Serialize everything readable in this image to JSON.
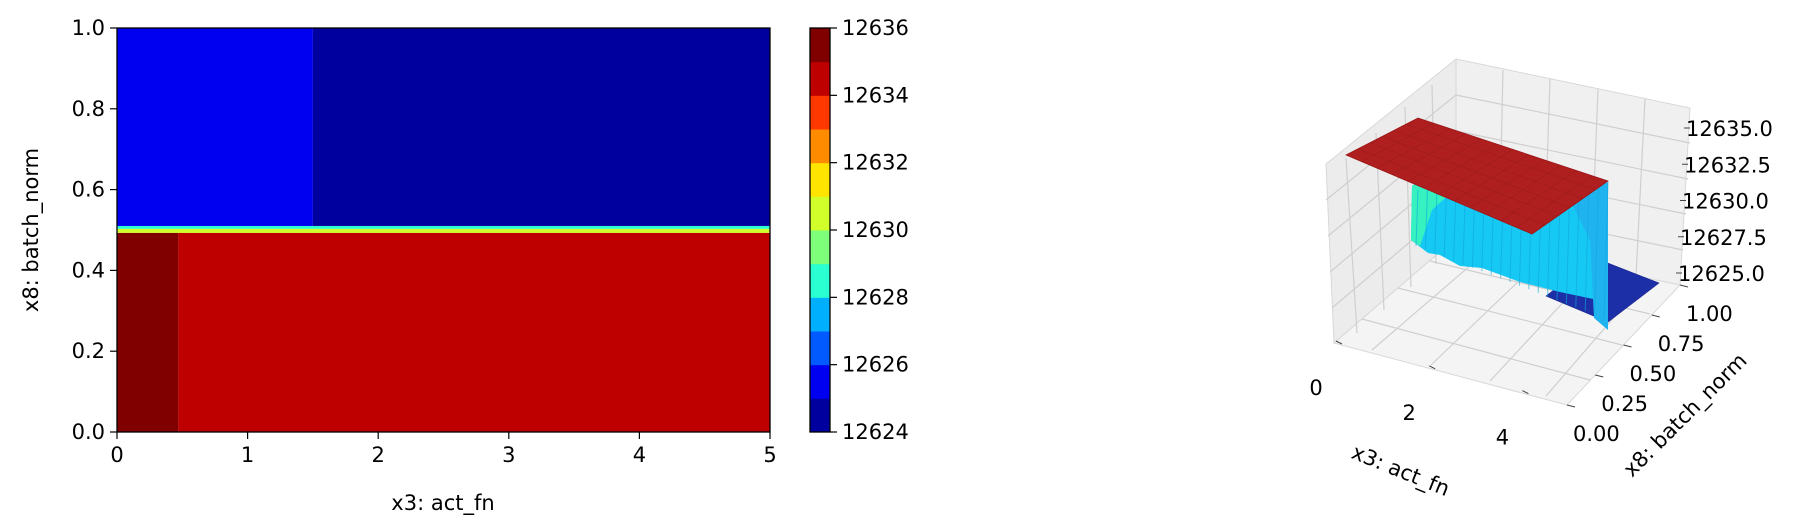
{
  "chart_data": [
    {
      "type": "contourf",
      "xlabel": "x3: act_fn",
      "ylabel": "x8: batch_norm",
      "xlim": [
        0,
        5
      ],
      "ylim": [
        0,
        1
      ],
      "xticks": [
        "0",
        "1",
        "2",
        "3",
        "4",
        "5"
      ],
      "yticks": [
        "0.0",
        "0.2",
        "0.4",
        "0.6",
        "0.8",
        "1.0"
      ],
      "regions": [
        {
          "x": [
            0,
            0.47
          ],
          "y": [
            0,
            0.493
          ],
          "value": 12635.7
        },
        {
          "x": [
            0.47,
            5
          ],
          "y": [
            0,
            0.493
          ],
          "value": 12634.5
        },
        {
          "x": [
            0,
            5
          ],
          "y": [
            0.493,
            0.503
          ],
          "value": 12630.5
        },
        {
          "x": [
            0,
            5
          ],
          "y": [
            0.503,
            0.51
          ],
          "value": 12628.8
        },
        {
          "x": [
            0,
            1.5
          ],
          "y": [
            0.51,
            1
          ],
          "value": 12625.5
        },
        {
          "x": [
            1.5,
            5
          ],
          "y": [
            0.51,
            1
          ],
          "value": 12624.6
        }
      ],
      "colorbar": {
        "range": [
          12624,
          12636
        ],
        "ticks": [
          "12624",
          "12626",
          "12628",
          "12630",
          "12632",
          "12634",
          "12636"
        ],
        "levels": [
          "#00009f",
          "#0000f1",
          "#005aff",
          "#00b0ff",
          "#29ffd0",
          "#7dff7a",
          "#d0ff29",
          "#ffe400",
          "#ff8c00",
          "#ff3800",
          "#be0000",
          "#800000"
        ]
      }
    },
    {
      "type": "surface3d",
      "xlabel": "x3: act_fn",
      "ylabel": "x8: batch_norm",
      "xticks": [
        "0",
        "2",
        "4"
      ],
      "yticks": [
        "0.00",
        "0.25",
        "0.50",
        "0.75",
        "1.00"
      ],
      "zticks": [
        "12625.0",
        "12627.5",
        "12630.0",
        "12632.5",
        "12635.0"
      ],
      "xlim": [
        0,
        5
      ],
      "ylim": [
        0,
        1
      ],
      "zlim": [
        12624,
        12636
      ],
      "surface": {
        "x_range": [
          0,
          5
        ],
        "low_batch_norm_value": 12634.8,
        "high_batch_norm_value": 12624.6,
        "step_at_batch_norm": 0.5,
        "wall_color_low": "#29ffd0",
        "wall_color_high": "#00b0ff",
        "top_color": "#b01f1f"
      }
    }
  ]
}
